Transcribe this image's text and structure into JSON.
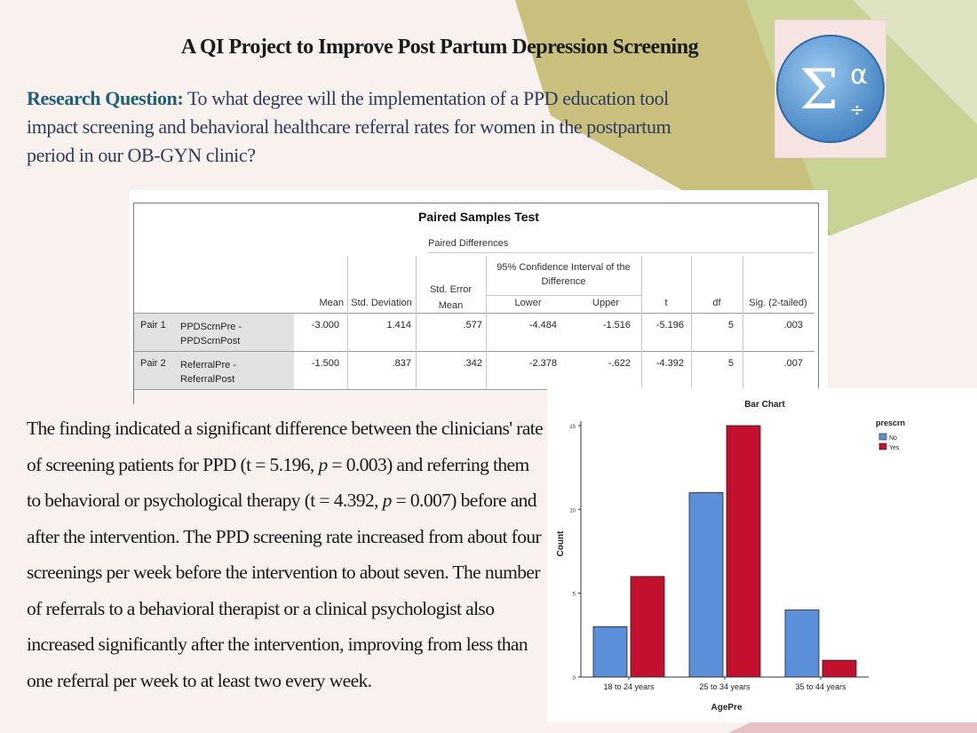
{
  "slide": {
    "title": "A QI Project to Improve Post Partum Depression Screening",
    "research_label": "Research Question:",
    "research_text": " To what degree will the implementation of a PPD education tool impact screening and behavioral healthcare referral rates for women in the postpartum period in our OB-GYN clinic?",
    "paragraph_1": "The finding indicated a significant difference between the clinicians' rate of screening patients for PPD (t = 5.196, ",
    "p_italic": "p",
    "paragraph_2": " = 0.003) and referring them to behavioral or psychological therapy (t = 4.392, ",
    "paragraph_3": " = 0.007) before and after the intervention. The PPD screening rate increased from about four screenings per week before the intervention to about seven. The number of referrals to a behavioral therapist or a clinical psychologist also increased significantly after the intervention, improving from less than one referral per week to at least two every week."
  },
  "logo": {
    "sigma": "Σ",
    "alpha": "α",
    "divide": "÷"
  },
  "table": {
    "title": "Paired Samples Test",
    "group_header": "Paired Differences",
    "ci_header_line1": "95% Confidence Interval of the",
    "ci_header_line2": "Difference",
    "headers": {
      "mean": "Mean",
      "sd": "Std. Deviation",
      "se_line1": "Std. Error",
      "se_line2": "Mean",
      "lower": "Lower",
      "upper": "Upper",
      "t": "t",
      "df": "df",
      "sig": "Sig. (2-tailed)"
    },
    "rows": [
      {
        "pair": "Pair 1",
        "var1": "PPDScrnPre -",
        "var2": "PPDScrnPost",
        "mean": "-3.000",
        "sd": "1.414",
        "se": ".577",
        "lower": "-4.484",
        "upper": "-1.516",
        "t": "-5.196",
        "df": "5",
        "sig": ".003"
      },
      {
        "pair": "Pair 2",
        "var1": "ReferralPre -",
        "var2": "ReferralPost",
        "mean": "-1.500",
        "sd": ".837",
        "se": ".342",
        "lower": "-2.378",
        "upper": "-.622",
        "t": "-4.392",
        "df": "5",
        "sig": ".007"
      }
    ]
  },
  "chart_data": {
    "type": "bar",
    "title": "Bar Chart",
    "xlabel": "AgePre",
    "ylabel": "Count",
    "categories": [
      "18 to 24 years",
      "25 to 34 years",
      "35 to 44 years"
    ],
    "series": [
      {
        "name": "No",
        "color": "#5b8fd9",
        "values": [
          3,
          11,
          4
        ]
      },
      {
        "name": "Yes",
        "color": "#c3102f",
        "values": [
          6,
          15,
          1
        ]
      }
    ],
    "legend_title": "prescrn",
    "yticks": [
      0,
      5,
      10,
      15
    ],
    "ylim": [
      0,
      15
    ],
    "legend_position": "top-right"
  }
}
